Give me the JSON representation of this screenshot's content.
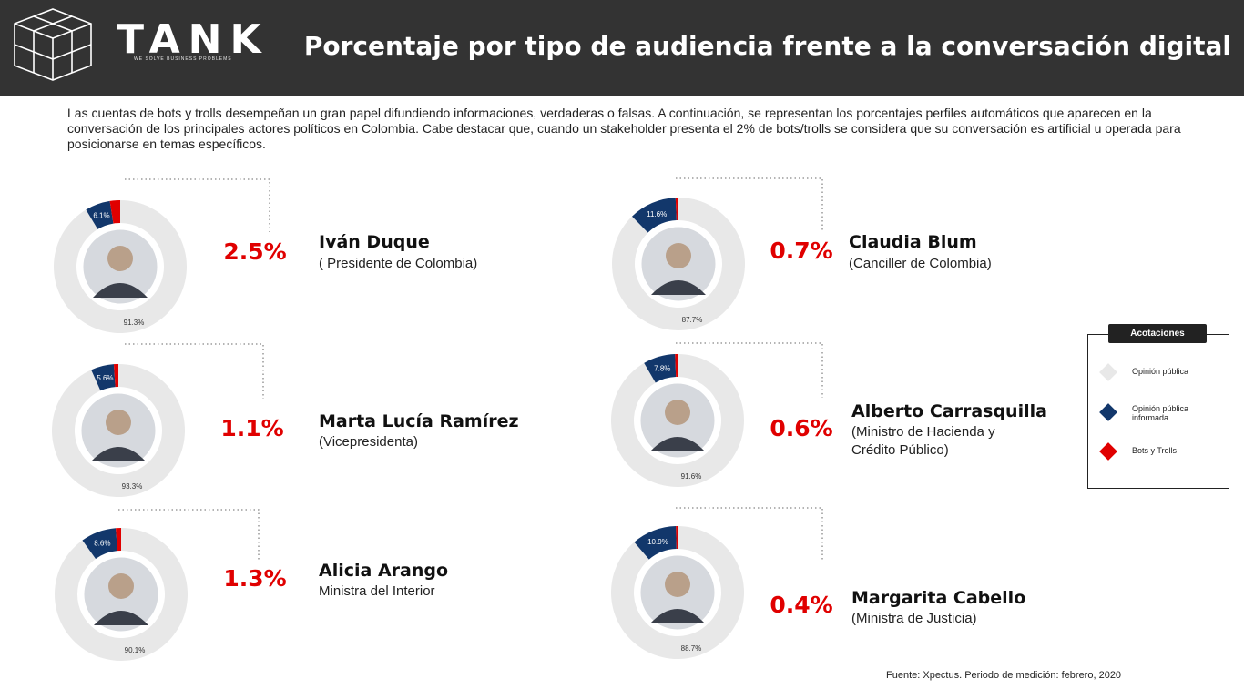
{
  "header": {
    "logo_text": "TANK",
    "logo_tagline": "WE SOLVE BUSINESS PROBLEMS",
    "title": "Porcentaje por tipo de audiencia frente a la conversación digital",
    "bg_color": "#333333"
  },
  "intro": "Las cuentas de bots y trolls desempeñan un gran papel difundiendo informaciones, verdaderas o falsas. A continuación, se representan los porcentajes perfiles automáticos que aparecen en la conversación de los principales actores políticos en Colombia. Cabe destacar que, cuando un stakeholder presenta el 2% de bots/trolls se considera que su conversación es artificial u operada para posicionarse en temas específicos.",
  "colors": {
    "opinion_publica": "#e8e8e8",
    "opinion_informada": "#12376b",
    "bots_trolls": "#e00000"
  },
  "legend": {
    "title": "Acotaciones",
    "items": [
      {
        "label": "Opinión pública",
        "color": "#e8e8e8"
      },
      {
        "label": "Opinión pública informada",
        "color": "#12376b"
      },
      {
        "label": "Bots y Trolls",
        "color": "#e00000"
      }
    ]
  },
  "chart_data": {
    "type": "pie",
    "variant": "donut",
    "series_names": [
      "Opinión pública",
      "Opinión pública informada",
      "Bots y Trolls"
    ],
    "actors": [
      {
        "name": "Iván Duque",
        "role": "( Presidente de Colombia)",
        "opinion_publica": "91.3%",
        "informada": "6.1%",
        "bots": "2.5%",
        "values": [
          91.3,
          6.1,
          2.5
        ]
      },
      {
        "name": "Marta Lucía Ramírez",
        "role": "(Vicepresidenta)",
        "opinion_publica": "93.3%",
        "informada": "5.6%",
        "bots": "1.1%",
        "values": [
          93.3,
          5.6,
          1.1
        ]
      },
      {
        "name": "Alicia Arango",
        "role": "Ministra del Interior",
        "opinion_publica": "90.1%",
        "informada": "8.6%",
        "bots": "1.3%",
        "values": [
          90.1,
          8.6,
          1.3
        ]
      },
      {
        "name": "Claudia Blum",
        "role": "(Canciller de Colombia)",
        "opinion_publica": "87.7%",
        "informada": "11.6%",
        "bots": "0.7%",
        "values": [
          87.7,
          11.6,
          0.7
        ]
      },
      {
        "name": "Alberto Carrasquilla",
        "role": "(Ministro de Hacienda y\nCrédito Público)",
        "opinion_publica": "91.6%",
        "informada": "7.8%",
        "bots": "0.6%",
        "values": [
          91.6,
          7.8,
          0.6
        ]
      },
      {
        "name": "Margarita Cabello",
        "role": "(Ministra de Justicia)",
        "opinion_publica": "88.7%",
        "informada": "10.9%",
        "bots": "0.4%",
        "values": [
          88.7,
          10.9,
          0.4
        ]
      }
    ]
  },
  "source": "Fuente: Xpectus. Periodo de medición: febrero, 2020"
}
